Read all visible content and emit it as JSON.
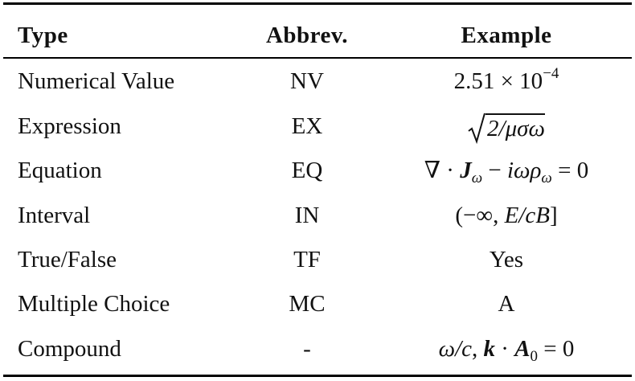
{
  "table": {
    "header": [
      "Type",
      "Abbrev.",
      "Example"
    ],
    "rows": [
      [
        "Numerical Value",
        "NV",
        [
          "2.51 × 10",
          "−4"
        ]
      ],
      [
        "Expression",
        "EX",
        [
          "2/μσω"
        ]
      ],
      [
        "Equation",
        "EQ",
        [
          "∇ · ",
          "J",
          "ω",
          " − ",
          "iωρ",
          "ω",
          " = 0"
        ]
      ],
      [
        "Interval",
        "IN",
        [
          "(−∞, ",
          "E/cB",
          "]"
        ]
      ],
      [
        "True/False",
        "TF",
        [
          "Yes"
        ]
      ],
      [
        "Multiple Choice",
        "MC",
        [
          "A"
        ]
      ],
      [
        "Compound",
        "-",
        [
          "ω/c",
          ", ",
          "k",
          " · ",
          "A",
          "0",
          " = 0"
        ]
      ]
    ]
  }
}
